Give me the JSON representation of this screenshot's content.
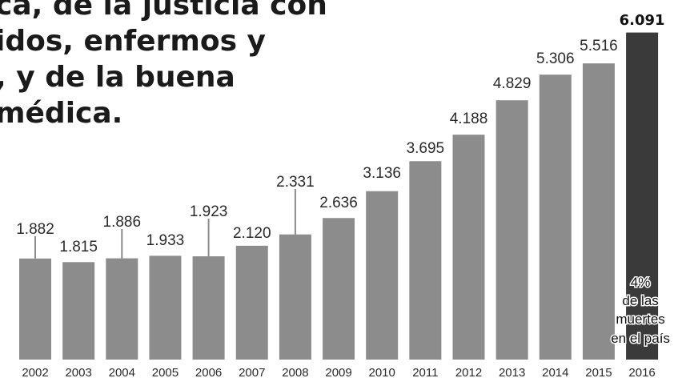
{
  "headline": {
    "lines": [
      "ca, de la justicia con",
      "idos, enfermos y",
      ", y de la buena",
      " médica."
    ]
  },
  "colors": {
    "bar": "#8c8c8c",
    "bar_highlight": "#3a3a3a",
    "leader": "#8c8c8c",
    "text": "#2a2a2a"
  },
  "chart_data": {
    "type": "bar",
    "title": "",
    "xlabel": "",
    "ylabel": "",
    "categories": [
      "2002",
      "2003",
      "2004",
      "2005",
      "2006",
      "2007",
      "2008",
      "2009",
      "2010",
      "2011",
      "2012",
      "2013",
      "2014",
      "2015",
      "2016"
    ],
    "values": [
      1882,
      1815,
      1886,
      1933,
      1923,
      2120,
      2331,
      2636,
      3136,
      3695,
      4188,
      4829,
      5306,
      5516,
      6091
    ],
    "value_labels": [
      "1.882",
      "1.815",
      "1.886",
      "1.933",
      "1.923",
      "2.120",
      "2.331",
      "2.636",
      "3.136",
      "3.695",
      "4.188",
      "4.829",
      "5.306",
      "5.516",
      "6.091"
    ],
    "highlight_index": 14,
    "ylim": [
      0,
      6100
    ],
    "grid": false,
    "legend": "none",
    "annotation": {
      "category": "2016",
      "lines": [
        "4%",
        "de las",
        "muertes",
        "en el país"
      ]
    }
  }
}
